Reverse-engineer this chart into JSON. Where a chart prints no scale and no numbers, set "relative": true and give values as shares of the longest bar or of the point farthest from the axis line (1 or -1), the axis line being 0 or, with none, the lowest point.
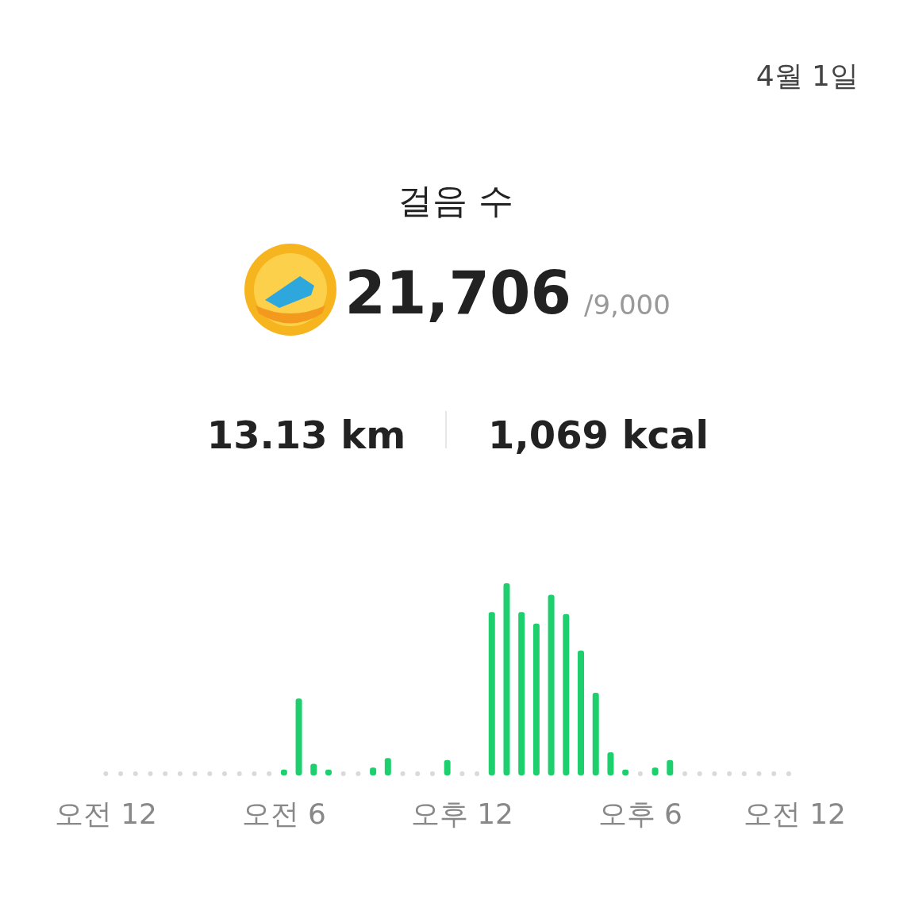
{
  "chart_data": {
    "type": "bar",
    "title": "걸음 수",
    "relative": true,
    "color": "#1ecf6e",
    "annotations": [
      "4월 1일",
      "21,706",
      "/9,000",
      "13.13 km",
      "1,069 kcal",
      "오전 12"
    ],
    "categories": [
      "오전 12",
      null,
      null,
      null,
      null,
      null,
      null,
      null,
      null,
      null,
      null,
      null,
      "오전 6",
      null,
      null,
      null,
      null,
      null,
      null,
      null,
      null,
      null,
      null,
      null,
      "오후 12",
      null,
      null,
      null,
      null,
      null,
      null,
      null,
      null,
      null,
      null,
      null,
      "오후 6",
      null,
      null,
      null,
      null,
      null,
      null,
      null,
      null,
      null,
      null,
      null
    ],
    "values": [
      null,
      null,
      null,
      null,
      null,
      null,
      null,
      null,
      null,
      null,
      null,
      null,
      0.03,
      0.4,
      0.06,
      0.03,
      null,
      null,
      0.04,
      0.09,
      null,
      null,
      null,
      0.08,
      null,
      null,
      0.85,
      1.0,
      0.85,
      0.79,
      0.94,
      0.84,
      0.65,
      0.43,
      0.12,
      0.03,
      null,
      0.04,
      0.08,
      null,
      null,
      null,
      null,
      null,
      null,
      null,
      null,
      null
    ]
  }
}
